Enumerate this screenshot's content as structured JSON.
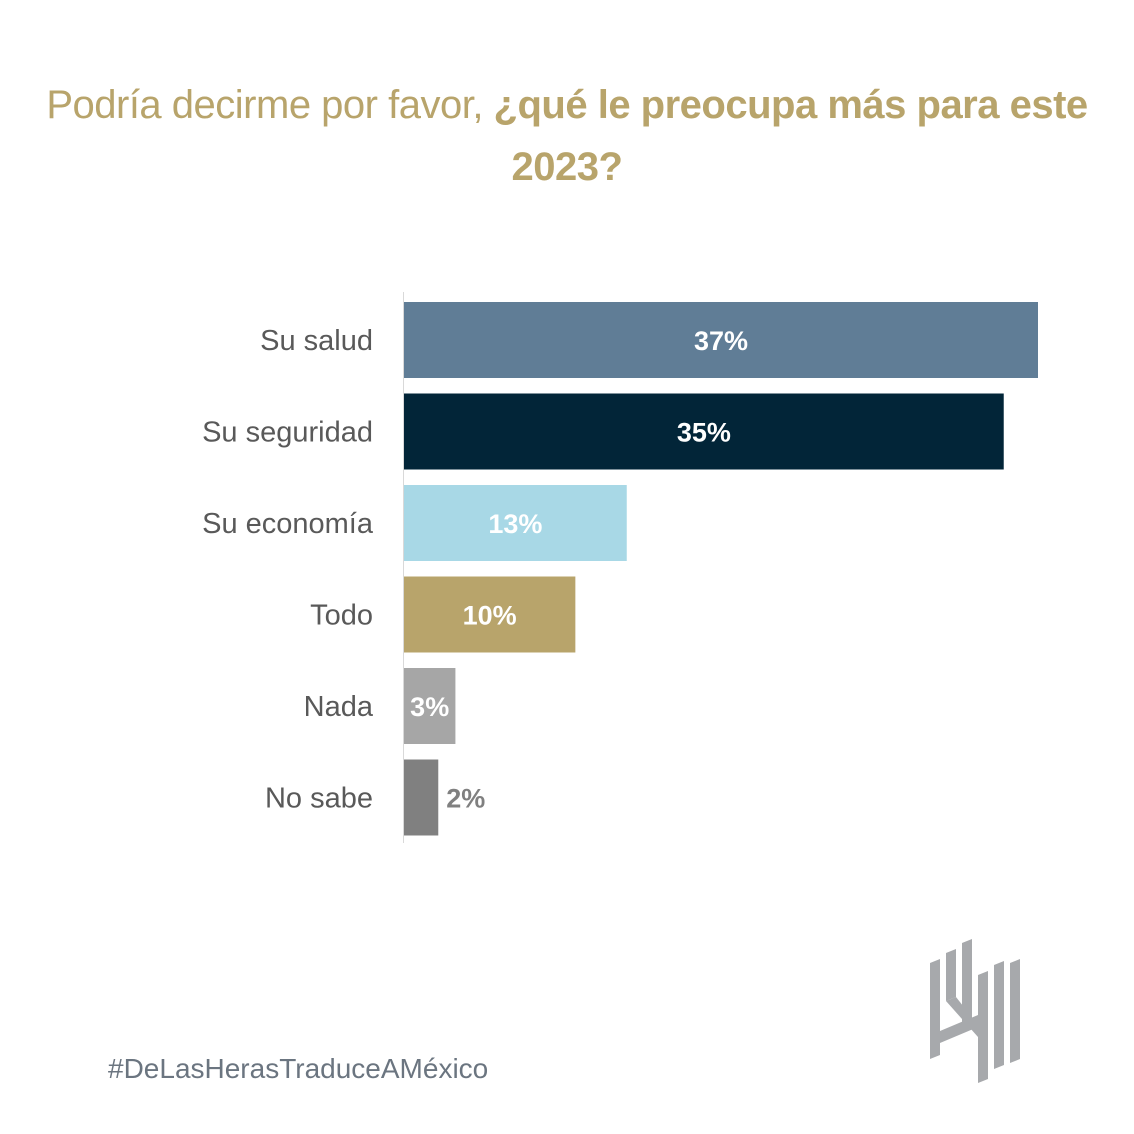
{
  "title": {
    "light_part": "Podría decirme por favor, ",
    "bold_part": "¿qué le preocupa más para este 2023?"
  },
  "chart_data": {
    "type": "bar",
    "orientation": "horizontal",
    "title": "Podría decirme por favor, ¿qué le preocupa más para este 2023?",
    "xlabel": "",
    "ylabel": "",
    "categories": [
      "Su salud",
      "Su seguridad",
      "Su economía",
      "Todo",
      "Nada",
      "No sabe"
    ],
    "values": [
      37,
      35,
      13,
      10,
      3,
      2
    ],
    "value_labels": [
      "37%",
      "35%",
      "13%",
      "10%",
      "3%",
      "2%"
    ],
    "unit": "%",
    "xlim": [
      0,
      37
    ],
    "grid": false,
    "legend": "none",
    "colors": [
      "#607d96",
      "#022538",
      "#a8d8e6",
      "#b8a46b",
      "#a6a6a6",
      "#808080"
    ],
    "label_colors": [
      "#ffffff",
      "#ffffff",
      "#ffffff",
      "#ffffff",
      "#ffffff",
      "#808080"
    ]
  },
  "footer": {
    "hashtag": "#DeLasHerasTraduceAMéxico"
  },
  "logo": {
    "icon": "de-las-heras-logo-icon",
    "color": "#a7a9ac"
  }
}
